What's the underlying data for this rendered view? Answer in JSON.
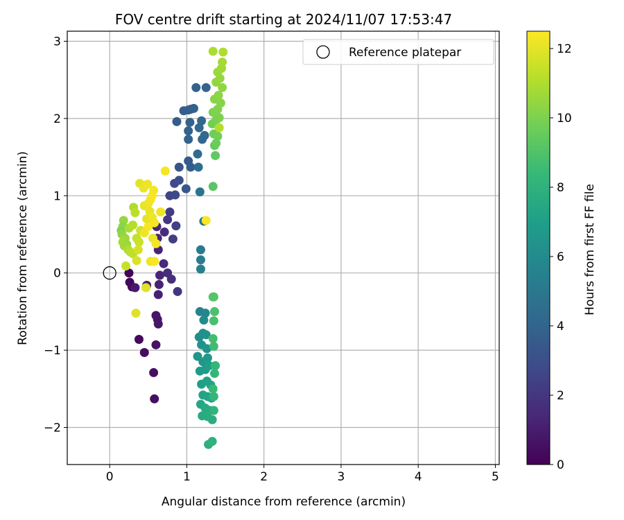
{
  "chart_data": {
    "type": "scatter",
    "title": "FOV centre drift starting at 2024/11/07 17:53:47",
    "xlabel": "Angular distance from reference (arcmin)",
    "ylabel": "Rotation from reference (arcmin)",
    "xlim": [
      -0.55,
      5.05
    ],
    "ylim": [
      -2.48,
      3.13
    ],
    "xticks": [
      0,
      1,
      2,
      3,
      4,
      5
    ],
    "xtick_labels": [
      "0",
      "1",
      "2",
      "3",
      "4",
      "5"
    ],
    "yticks": [
      -2,
      -1,
      0,
      1,
      2,
      3
    ],
    "ytick_labels": [
      "−2",
      "−1",
      "0",
      "1",
      "2",
      "3"
    ],
    "grid": true,
    "legend": {
      "placement": "top-right",
      "entries": [
        "Reference platepar"
      ]
    },
    "colorbar": {
      "label": "Hours from first FF file",
      "colormap": "viridis",
      "range": [
        0,
        12.5
      ],
      "ticks": [
        0,
        2,
        4,
        6,
        8,
        10,
        12
      ],
      "tick_labels": [
        "0",
        "2",
        "4",
        "6",
        "8",
        "10",
        "12"
      ]
    },
    "reference_point": {
      "x": 0,
      "y": 0
    },
    "colormap_stops": [
      "#440154",
      "#482878",
      "#3e4a89",
      "#31688e",
      "#26828e",
      "#1f9e89",
      "#35b779",
      "#6ece58",
      "#b5de2b",
      "#fde725"
    ],
    "points": [
      {
        "x": 0.25,
        "y": 0.0,
        "h": 0.1
      },
      {
        "x": 0.26,
        "y": -0.12,
        "h": 0.2
      },
      {
        "x": 0.29,
        "y": -0.18,
        "h": 0.3
      },
      {
        "x": 0.38,
        "y": -0.86,
        "h": 0.3
      },
      {
        "x": 0.45,
        "y": -1.03,
        "h": 0.4
      },
      {
        "x": 0.57,
        "y": -1.29,
        "h": 0.5
      },
      {
        "x": 0.58,
        "y": -1.63,
        "h": 0.5
      },
      {
        "x": 0.6,
        "y": -0.55,
        "h": 0.7
      },
      {
        "x": 0.62,
        "y": -0.6,
        "h": 0.8
      },
      {
        "x": 0.63,
        "y": -0.66,
        "h": 0.8
      },
      {
        "x": 0.6,
        "y": -0.93,
        "h": 0.6
      },
      {
        "x": 0.33,
        "y": -0.19,
        "h": 0.9
      },
      {
        "x": 0.48,
        "y": -0.16,
        "h": 1.0
      },
      {
        "x": 0.63,
        "y": -0.28,
        "h": 1.1
      },
      {
        "x": 0.64,
        "y": -0.15,
        "h": 1.2
      },
      {
        "x": 0.65,
        "y": -0.03,
        "h": 1.3
      },
      {
        "x": 0.7,
        "y": 0.12,
        "h": 1.5
      },
      {
        "x": 0.75,
        "y": 0.0,
        "h": 1.6
      },
      {
        "x": 0.8,
        "y": -0.08,
        "h": 1.7
      },
      {
        "x": 0.88,
        "y": -0.24,
        "h": 1.9
      },
      {
        "x": 0.63,
        "y": 0.3,
        "h": 1.2
      },
      {
        "x": 0.62,
        "y": 0.45,
        "h": 1.4
      },
      {
        "x": 0.61,
        "y": 0.6,
        "h": 1.3
      },
      {
        "x": 0.71,
        "y": 0.53,
        "h": 1.6
      },
      {
        "x": 0.75,
        "y": 0.69,
        "h": 2.0
      },
      {
        "x": 0.78,
        "y": 0.79,
        "h": 2.2
      },
      {
        "x": 0.82,
        "y": 0.44,
        "h": 2.3
      },
      {
        "x": 0.86,
        "y": 0.61,
        "h": 2.4
      },
      {
        "x": 0.78,
        "y": 1.0,
        "h": 2.6
      },
      {
        "x": 0.85,
        "y": 1.01,
        "h": 2.7
      },
      {
        "x": 0.84,
        "y": 1.16,
        "h": 2.8
      },
      {
        "x": 0.9,
        "y": 1.2,
        "h": 3.0
      },
      {
        "x": 0.9,
        "y": 1.37,
        "h": 3.2
      },
      {
        "x": 0.99,
        "y": 1.09,
        "h": 3.4
      },
      {
        "x": 1.02,
        "y": 1.45,
        "h": 3.5
      },
      {
        "x": 1.05,
        "y": 1.37,
        "h": 3.6
      },
      {
        "x": 0.87,
        "y": 1.96,
        "h": 3.6
      },
      {
        "x": 0.96,
        "y": 2.1,
        "h": 3.7
      },
      {
        "x": 1.02,
        "y": 2.11,
        "h": 3.6
      },
      {
        "x": 1.05,
        "y": 2.12,
        "h": 3.8
      },
      {
        "x": 1.09,
        "y": 2.13,
        "h": 3.9
      },
      {
        "x": 1.02,
        "y": 1.84,
        "h": 3.9
      },
      {
        "x": 1.04,
        "y": 1.95,
        "h": 4.0
      },
      {
        "x": 1.02,
        "y": 1.73,
        "h": 4.0
      },
      {
        "x": 1.12,
        "y": 2.4,
        "h": 3.8
      },
      {
        "x": 1.25,
        "y": 2.4,
        "h": 4.0
      },
      {
        "x": 1.16,
        "y": 1.88,
        "h": 4.1
      },
      {
        "x": 1.19,
        "y": 1.97,
        "h": 4.2
      },
      {
        "x": 1.2,
        "y": 1.73,
        "h": 4.2
      },
      {
        "x": 1.23,
        "y": 1.78,
        "h": 4.3
      },
      {
        "x": 1.14,
        "y": 1.54,
        "h": 4.4
      },
      {
        "x": 1.15,
        "y": 1.37,
        "h": 4.5
      },
      {
        "x": 1.17,
        "y": 1.05,
        "h": 4.8
      },
      {
        "x": 1.22,
        "y": 0.67,
        "h": 5.0
      },
      {
        "x": 1.18,
        "y": 0.3,
        "h": 5.2
      },
      {
        "x": 1.18,
        "y": 0.17,
        "h": 5.3
      },
      {
        "x": 1.18,
        "y": 0.05,
        "h": 5.4
      },
      {
        "x": 1.17,
        "y": -0.5,
        "h": 5.6
      },
      {
        "x": 1.24,
        "y": -0.52,
        "h": 5.8
      },
      {
        "x": 1.22,
        "y": -0.61,
        "h": 6.0
      },
      {
        "x": 1.16,
        "y": -0.83,
        "h": 6.1
      },
      {
        "x": 1.21,
        "y": -0.78,
        "h": 6.2
      },
      {
        "x": 1.25,
        "y": -0.8,
        "h": 6.3
      },
      {
        "x": 1.19,
        "y": -0.93,
        "h": 6.4
      },
      {
        "x": 1.26,
        "y": -0.98,
        "h": 6.5
      },
      {
        "x": 1.14,
        "y": -1.08,
        "h": 6.5
      },
      {
        "x": 1.21,
        "y": -1.15,
        "h": 6.6
      },
      {
        "x": 1.27,
        "y": -1.1,
        "h": 6.7
      },
      {
        "x": 1.17,
        "y": -1.27,
        "h": 6.8
      },
      {
        "x": 1.24,
        "y": -1.25,
        "h": 6.9
      },
      {
        "x": 1.29,
        "y": -1.2,
        "h": 7.0
      },
      {
        "x": 1.19,
        "y": -1.44,
        "h": 7.0
      },
      {
        "x": 1.26,
        "y": -1.4,
        "h": 7.1
      },
      {
        "x": 1.31,
        "y": -1.45,
        "h": 7.2
      },
      {
        "x": 1.21,
        "y": -1.58,
        "h": 7.2
      },
      {
        "x": 1.27,
        "y": -1.6,
        "h": 7.3
      },
      {
        "x": 1.32,
        "y": -1.62,
        "h": 7.4
      },
      {
        "x": 1.18,
        "y": -1.7,
        "h": 7.4
      },
      {
        "x": 1.24,
        "y": -1.75,
        "h": 7.5
      },
      {
        "x": 1.3,
        "y": -1.78,
        "h": 7.6
      },
      {
        "x": 1.2,
        "y": -1.85,
        "h": 7.6
      },
      {
        "x": 1.27,
        "y": -1.86,
        "h": 7.7
      },
      {
        "x": 1.33,
        "y": -1.9,
        "h": 7.8
      },
      {
        "x": 1.28,
        "y": -2.22,
        "h": 7.9
      },
      {
        "x": 1.33,
        "y": -2.18,
        "h": 8.0
      },
      {
        "x": 1.35,
        "y": -1.78,
        "h": 8.1
      },
      {
        "x": 1.35,
        "y": -1.6,
        "h": 8.2
      },
      {
        "x": 1.36,
        "y": -1.3,
        "h": 8.3
      },
      {
        "x": 1.37,
        "y": -1.2,
        "h": 8.3
      },
      {
        "x": 1.34,
        "y": -1.5,
        "h": 8.4
      },
      {
        "x": 1.35,
        "y": -0.95,
        "h": 8.6
      },
      {
        "x": 1.34,
        "y": -0.85,
        "h": 8.7
      },
      {
        "x": 1.35,
        "y": -0.62,
        "h": 8.8
      },
      {
        "x": 1.36,
        "y": -0.5,
        "h": 8.9
      },
      {
        "x": 1.35,
        "y": -0.31,
        "h": 9.0
      },
      {
        "x": 1.34,
        "y": -0.31,
        "h": 9.1
      },
      {
        "x": 1.34,
        "y": 1.12,
        "h": 9.2
      },
      {
        "x": 1.37,
        "y": 1.52,
        "h": 9.4
      },
      {
        "x": 1.36,
        "y": 1.65,
        "h": 9.5
      },
      {
        "x": 1.38,
        "y": 1.68,
        "h": 9.6
      },
      {
        "x": 1.35,
        "y": 1.8,
        "h": 9.7
      },
      {
        "x": 1.4,
        "y": 1.77,
        "h": 9.8
      },
      {
        "x": 1.33,
        "y": 1.93,
        "h": 9.8
      },
      {
        "x": 1.38,
        "y": 1.98,
        "h": 9.9
      },
      {
        "x": 1.42,
        "y": 2.01,
        "h": 10.0
      },
      {
        "x": 1.34,
        "y": 2.08,
        "h": 10.0
      },
      {
        "x": 1.4,
        "y": 2.12,
        "h": 10.1
      },
      {
        "x": 1.44,
        "y": 2.2,
        "h": 10.2
      },
      {
        "x": 1.36,
        "y": 2.25,
        "h": 10.2
      },
      {
        "x": 1.41,
        "y": 2.3,
        "h": 10.3
      },
      {
        "x": 1.46,
        "y": 2.4,
        "h": 10.4
      },
      {
        "x": 1.38,
        "y": 2.47,
        "h": 10.4
      },
      {
        "x": 1.43,
        "y": 2.52,
        "h": 10.5
      },
      {
        "x": 1.4,
        "y": 2.6,
        "h": 10.6
      },
      {
        "x": 1.45,
        "y": 2.65,
        "h": 10.7
      },
      {
        "x": 1.46,
        "y": 2.73,
        "h": 10.8
      },
      {
        "x": 1.34,
        "y": 2.87,
        "h": 10.9
      },
      {
        "x": 1.47,
        "y": 2.86,
        "h": 11.0
      },
      {
        "x": 1.42,
        "y": 1.88,
        "h": 11.1
      },
      {
        "x": 0.18,
        "y": 0.68,
        "h": 10.5
      },
      {
        "x": 0.17,
        "y": 0.6,
        "h": 10.3
      },
      {
        "x": 0.15,
        "y": 0.55,
        "h": 10.1
      },
      {
        "x": 0.16,
        "y": 0.5,
        "h": 10.4
      },
      {
        "x": 0.2,
        "y": 0.45,
        "h": 10.6
      },
      {
        "x": 0.17,
        "y": 0.4,
        "h": 10.8
      },
      {
        "x": 0.22,
        "y": 0.37,
        "h": 10.5
      },
      {
        "x": 0.19,
        "y": 0.35,
        "h": 10.7
      },
      {
        "x": 0.24,
        "y": 0.3,
        "h": 11.0
      },
      {
        "x": 0.27,
        "y": 0.27,
        "h": 11.2
      },
      {
        "x": 0.3,
        "y": 0.25,
        "h": 11.3
      },
      {
        "x": 0.25,
        "y": 0.58,
        "h": 10.9
      },
      {
        "x": 0.3,
        "y": 0.62,
        "h": 11.1
      },
      {
        "x": 0.31,
        "y": 0.85,
        "h": 11.0
      },
      {
        "x": 0.33,
        "y": 0.78,
        "h": 11.2
      },
      {
        "x": 0.35,
        "y": 0.45,
        "h": 11.4
      },
      {
        "x": 0.38,
        "y": 0.4,
        "h": 11.5
      },
      {
        "x": 0.4,
        "y": 0.55,
        "h": 11.6
      },
      {
        "x": 0.37,
        "y": 0.3,
        "h": 11.7
      },
      {
        "x": 0.21,
        "y": 0.09,
        "h": 11.4
      },
      {
        "x": 0.35,
        "y": 0.16,
        "h": 11.8
      },
      {
        "x": 0.34,
        "y": -0.52,
        "h": 11.9
      },
      {
        "x": 0.47,
        "y": -0.19,
        "h": 11.9
      },
      {
        "x": 0.39,
        "y": 1.16,
        "h": 12.0
      },
      {
        "x": 0.44,
        "y": 1.1,
        "h": 12.1
      },
      {
        "x": 0.49,
        "y": 1.15,
        "h": 12.2
      },
      {
        "x": 0.45,
        "y": 0.87,
        "h": 12.1
      },
      {
        "x": 0.5,
        "y": 0.9,
        "h": 12.2
      },
      {
        "x": 0.53,
        "y": 0.95,
        "h": 12.3
      },
      {
        "x": 0.55,
        "y": 1.0,
        "h": 12.4
      },
      {
        "x": 0.57,
        "y": 1.07,
        "h": 12.3
      },
      {
        "x": 0.52,
        "y": 0.8,
        "h": 12.1
      },
      {
        "x": 0.48,
        "y": 0.7,
        "h": 12.0
      },
      {
        "x": 0.55,
        "y": 0.72,
        "h": 12.2
      },
      {
        "x": 0.58,
        "y": 0.65,
        "h": 12.3
      },
      {
        "x": 0.5,
        "y": 0.6,
        "h": 12.4
      },
      {
        "x": 0.45,
        "y": 0.52,
        "h": 12.2
      },
      {
        "x": 0.56,
        "y": 0.45,
        "h": 12.1
      },
      {
        "x": 0.6,
        "y": 0.38,
        "h": 12.3
      },
      {
        "x": 0.53,
        "y": 0.15,
        "h": 12.2
      },
      {
        "x": 0.58,
        "y": 0.15,
        "h": 12.4
      },
      {
        "x": 0.66,
        "y": 0.79,
        "h": 12.2
      },
      {
        "x": 0.72,
        "y": 1.32,
        "h": 12.3
      },
      {
        "x": 1.25,
        "y": 0.68,
        "h": 12.4
      }
    ]
  }
}
